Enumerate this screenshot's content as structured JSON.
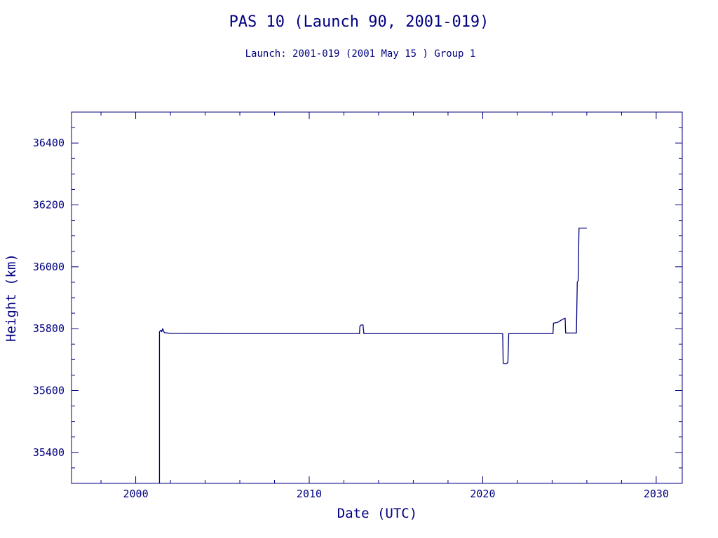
{
  "chart_data": {
    "type": "line",
    "title": "PAS 10 (Launch 90, 2001-019)",
    "subtitle": "Launch: 2001-019  (2001 May 15 )  Group 1",
    "xlabel": "Date (UTC)",
    "ylabel": "Height (km)",
    "xlim": [
      1996.3,
      2031.5
    ],
    "ylim": [
      35300,
      36500
    ],
    "x_ticks": [
      2000,
      2010,
      2020,
      2030
    ],
    "x_tick_labels": [
      "2000",
      "2010",
      "2020",
      "2030"
    ],
    "y_ticks": [
      35400,
      35600,
      35800,
      36000,
      36200,
      36400
    ],
    "y_tick_labels": [
      "35400",
      "35600",
      "35800",
      "36000",
      "36200",
      "36400"
    ],
    "line_color": "#000080",
    "series": [
      {
        "points": [
          [
            2001.37,
            35300
          ],
          [
            2001.37,
            35790
          ],
          [
            2001.45,
            35795
          ],
          [
            2001.5,
            35790
          ],
          [
            2001.55,
            35800
          ],
          [
            2001.65,
            35787
          ],
          [
            2002.0,
            35785
          ],
          [
            2005.0,
            35784
          ],
          [
            2008.0,
            35784
          ],
          [
            2012.9,
            35784
          ],
          [
            2012.92,
            35808
          ],
          [
            2013.0,
            35812
          ],
          [
            2013.1,
            35812
          ],
          [
            2013.15,
            35784
          ],
          [
            2016.0,
            35784
          ],
          [
            2019.0,
            35784
          ],
          [
            2021.15,
            35784
          ],
          [
            2021.18,
            35688
          ],
          [
            2021.3,
            35686
          ],
          [
            2021.45,
            35690
          ],
          [
            2021.5,
            35784
          ],
          [
            2023.0,
            35784
          ],
          [
            2024.05,
            35784
          ],
          [
            2024.08,
            35818
          ],
          [
            2024.3,
            35820
          ],
          [
            2024.6,
            35830
          ],
          [
            2024.75,
            35834
          ],
          [
            2024.78,
            35786
          ],
          [
            2025.4,
            35786
          ],
          [
            2025.45,
            35950
          ],
          [
            2025.5,
            35955
          ],
          [
            2025.55,
            36125
          ],
          [
            2026.0,
            36125
          ]
        ]
      }
    ]
  }
}
